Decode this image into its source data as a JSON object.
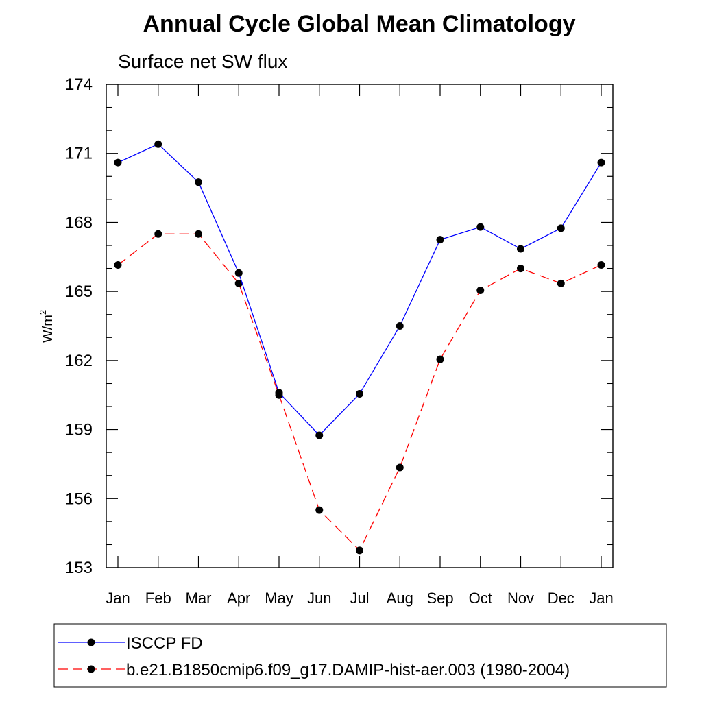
{
  "chart_data": {
    "type": "line",
    "title": "Annual Cycle Global Mean Climatology",
    "subtitle": "Surface net SW flux",
    "ylabel": "W/m",
    "ylabel_superscript": "2",
    "xlabel": "",
    "categories": [
      "Jan",
      "Feb",
      "Mar",
      "Apr",
      "May",
      "Jun",
      "Jul",
      "Aug",
      "Sep",
      "Oct",
      "Nov",
      "Dec",
      "Jan"
    ],
    "ylim": [
      153,
      174
    ],
    "yticks": [
      153,
      156,
      159,
      162,
      165,
      168,
      171,
      174
    ],
    "ytick_labels": [
      "153",
      "156",
      "159",
      "162",
      "165",
      "168",
      "171",
      "174"
    ],
    "legend_position": "bottom",
    "grid": false,
    "series": [
      {
        "name": "ISCCP FD",
        "color": "#0000ff",
        "dash": "solid",
        "marker": "circle",
        "values": [
          170.6,
          171.4,
          169.75,
          165.8,
          160.6,
          158.75,
          160.55,
          163.5,
          167.25,
          167.8,
          166.85,
          167.75,
          170.6
        ]
      },
      {
        "name": "b.e21.B1850cmip6.f09_g17.DAMIP-hist-aer.003 (1980-2004)",
        "color": "#ff0000",
        "dash": "dashed",
        "marker": "circle",
        "values": [
          166.15,
          167.5,
          167.5,
          165.35,
          160.5,
          155.5,
          153.75,
          157.35,
          162.05,
          165.05,
          166.0,
          165.35,
          166.15
        ]
      }
    ]
  }
}
